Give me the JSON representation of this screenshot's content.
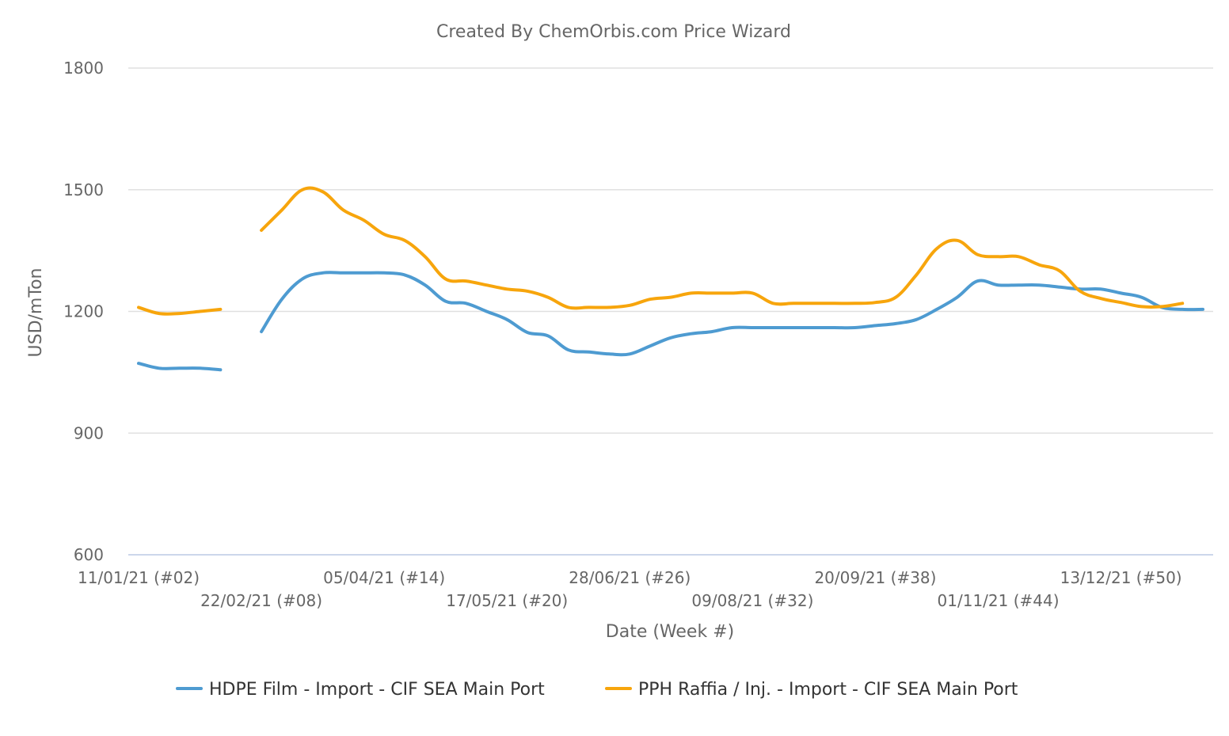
{
  "chart_data": {
    "type": "line",
    "title": "Created By ChemOrbis.com Price Wizard",
    "xlabel": "Date (Week #)",
    "ylabel": "USD/mTon",
    "ylim": [
      600,
      1800
    ],
    "yticks": [
      600,
      900,
      1200,
      1500,
      1800
    ],
    "xlim": [
      2,
      54
    ],
    "xticks": [
      {
        "week": 2,
        "label": "11/01/21 (#02)"
      },
      {
        "week": 8,
        "label": "22/02/21 (#08)"
      },
      {
        "week": 14,
        "label": "05/04/21 (#14)"
      },
      {
        "week": 20,
        "label": "17/05/21 (#20)"
      },
      {
        "week": 26,
        "label": "28/06/21 (#26)"
      },
      {
        "week": 32,
        "label": "09/08/21 (#32)"
      },
      {
        "week": 38,
        "label": "20/09/21 (#38)"
      },
      {
        "week": 44,
        "label": "01/11/21 (#44)"
      },
      {
        "week": 50,
        "label": "13/12/21 (#50)"
      }
    ],
    "grid": true,
    "legend_position": "bottom-center",
    "series": [
      {
        "name": "HDPE Film - Import - CIF SEA Main Port",
        "color": "#4e9bd1",
        "points": [
          [
            2,
            1072
          ],
          [
            3,
            1060
          ],
          [
            4,
            1060
          ],
          [
            5,
            1060
          ],
          [
            6,
            1056
          ],
          [
            8,
            1150
          ],
          [
            9,
            1230
          ],
          [
            10,
            1280
          ],
          [
            11,
            1295
          ],
          [
            12,
            1295
          ],
          [
            13,
            1295
          ],
          [
            14,
            1295
          ],
          [
            15,
            1290
          ],
          [
            16,
            1265
          ],
          [
            17,
            1225
          ],
          [
            18,
            1220
          ],
          [
            19,
            1200
          ],
          [
            20,
            1180
          ],
          [
            21,
            1148
          ],
          [
            22,
            1140
          ],
          [
            23,
            1105
          ],
          [
            24,
            1100
          ],
          [
            25,
            1095
          ],
          [
            26,
            1095
          ],
          [
            27,
            1115
          ],
          [
            28,
            1135
          ],
          [
            29,
            1145
          ],
          [
            30,
            1150
          ],
          [
            31,
            1160
          ],
          [
            32,
            1160
          ],
          [
            33,
            1160
          ],
          [
            34,
            1160
          ],
          [
            35,
            1160
          ],
          [
            36,
            1160
          ],
          [
            37,
            1160
          ],
          [
            38,
            1165
          ],
          [
            39,
            1170
          ],
          [
            40,
            1180
          ],
          [
            41,
            1205
          ],
          [
            42,
            1235
          ],
          [
            43,
            1275
          ],
          [
            44,
            1265
          ],
          [
            45,
            1265
          ],
          [
            46,
            1265
          ],
          [
            47,
            1260
          ],
          [
            48,
            1255
          ],
          [
            49,
            1255
          ],
          [
            50,
            1245
          ],
          [
            51,
            1235
          ],
          [
            52,
            1210
          ],
          [
            53,
            1205
          ],
          [
            54,
            1205
          ]
        ]
      },
      {
        "name": "PPH Raffia / Inj. - Import - CIF SEA Main Port",
        "color": "#f7a50c",
        "points": [
          [
            2,
            1210
          ],
          [
            3,
            1195
          ],
          [
            4,
            1195
          ],
          [
            5,
            1200
          ],
          [
            6,
            1205
          ],
          [
            8,
            1400
          ],
          [
            9,
            1450
          ],
          [
            10,
            1500
          ],
          [
            11,
            1495
          ],
          [
            12,
            1450
          ],
          [
            13,
            1425
          ],
          [
            14,
            1390
          ],
          [
            15,
            1375
          ],
          [
            16,
            1335
          ],
          [
            17,
            1280
          ],
          [
            18,
            1275
          ],
          [
            19,
            1265
          ],
          [
            20,
            1255
          ],
          [
            21,
            1250
          ],
          [
            22,
            1235
          ],
          [
            23,
            1210
          ],
          [
            24,
            1210
          ],
          [
            25,
            1210
          ],
          [
            26,
            1215
          ],
          [
            27,
            1230
          ],
          [
            28,
            1235
          ],
          [
            29,
            1245
          ],
          [
            30,
            1245
          ],
          [
            31,
            1245
          ],
          [
            32,
            1245
          ],
          [
            33,
            1220
          ],
          [
            34,
            1220
          ],
          [
            35,
            1220
          ],
          [
            36,
            1220
          ],
          [
            37,
            1220
          ],
          [
            38,
            1222
          ],
          [
            39,
            1235
          ],
          [
            40,
            1290
          ],
          [
            41,
            1355
          ],
          [
            42,
            1375
          ],
          [
            43,
            1340
          ],
          [
            44,
            1335
          ],
          [
            45,
            1335
          ],
          [
            46,
            1315
          ],
          [
            47,
            1300
          ],
          [
            48,
            1250
          ],
          [
            49,
            1232
          ],
          [
            50,
            1222
          ],
          [
            51,
            1212
          ],
          [
            52,
            1212
          ],
          [
            53,
            1220
          ]
        ]
      }
    ]
  }
}
